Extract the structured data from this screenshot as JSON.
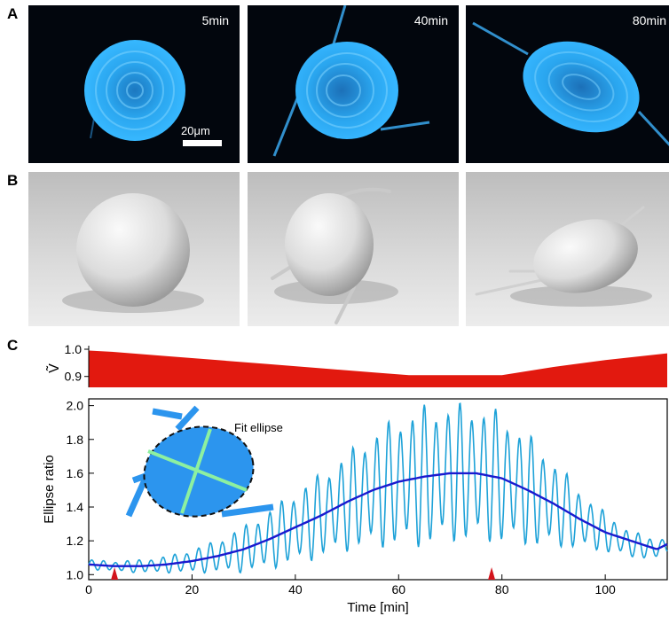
{
  "panels": {
    "a_label": "A",
    "b_label": "B",
    "c_label": "C"
  },
  "micrographs": [
    {
      "time": "5min"
    },
    {
      "time": "40min"
    },
    {
      "time": "80min"
    }
  ],
  "scale_bar": {
    "label": "20μm"
  },
  "colors": {
    "fluor_blue": "#2aa6ef",
    "volume_fill": "#e2190f",
    "raw_line": "#1ea2d8",
    "smooth_line": "#1a1acf",
    "marker": "#d3141c",
    "inset_fill": "#2c95ee",
    "inset_axes": "#8df0a0"
  },
  "inset": {
    "label": "Fit ellipse"
  },
  "chart_data": [
    {
      "type": "area",
      "ylabel": "Ṽ",
      "yticks": [
        0.9,
        1.0
      ],
      "ylim": [
        0.86,
        1.0
      ],
      "xlim": [
        0,
        112
      ],
      "x": [
        0,
        5,
        15,
        25,
        35,
        45,
        55,
        62,
        70,
        80,
        90,
        100,
        112
      ],
      "values": [
        0.995,
        0.99,
        0.975,
        0.96,
        0.945,
        0.93,
        0.915,
        0.905,
        0.905,
        0.905,
        0.935,
        0.96,
        0.985
      ]
    },
    {
      "type": "line",
      "xlabel": "Time [min]",
      "ylabel": "Ellipse ratio",
      "xlim": [
        0,
        112
      ],
      "ylim": [
        0.97,
        2.04
      ],
      "xticks": [
        0,
        20,
        40,
        60,
        80,
        100
      ],
      "yticks": [
        1.0,
        1.2,
        1.4,
        1.6,
        1.8,
        2.0
      ],
      "grid": false,
      "series": [
        {
          "style": "raw",
          "x": [
            0,
            5,
            10,
            15,
            20,
            25,
            30,
            35,
            40,
            45,
            50,
            55,
            60,
            65,
            70,
            75,
            80,
            85,
            90,
            95,
            100,
            105,
            110,
            112
          ],
          "mean": [
            1.06,
            1.05,
            1.05,
            1.06,
            1.08,
            1.11,
            1.15,
            1.21,
            1.28,
            1.35,
            1.43,
            1.5,
            1.55,
            1.58,
            1.6,
            1.6,
            1.57,
            1.5,
            1.42,
            1.33,
            1.25,
            1.18,
            1.15,
            1.18
          ],
          "amplitude": [
            0.03,
            0.03,
            0.04,
            0.05,
            0.07,
            0.1,
            0.14,
            0.18,
            0.22,
            0.26,
            0.3,
            0.35,
            0.4,
            0.43,
            0.42,
            0.42,
            0.4,
            0.34,
            0.27,
            0.18,
            0.12,
            0.08,
            0.06,
            0.05
          ],
          "period_min": 2.3
        },
        {
          "style": "smoothed",
          "x": [
            0,
            5,
            10,
            15,
            20,
            25,
            30,
            35,
            40,
            45,
            50,
            55,
            60,
            65,
            70,
            75,
            80,
            85,
            90,
            95,
            100,
            105,
            110,
            112
          ],
          "values": [
            1.06,
            1.05,
            1.05,
            1.06,
            1.08,
            1.11,
            1.15,
            1.21,
            1.28,
            1.35,
            1.43,
            1.5,
            1.55,
            1.58,
            1.6,
            1.6,
            1.57,
            1.5,
            1.42,
            1.33,
            1.25,
            1.2,
            1.15,
            1.18
          ]
        }
      ],
      "markers": [
        5,
        78
      ]
    }
  ]
}
